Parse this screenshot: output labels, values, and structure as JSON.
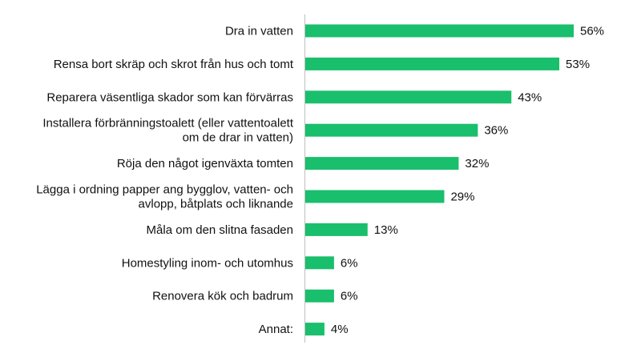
{
  "chart_data": {
    "type": "bar",
    "orientation": "horizontal",
    "categories": [
      "Dra in vatten",
      "Rensa bort skräp och skrot från hus och tomt",
      "Reparera väsentliga skador som kan förvärras",
      "Installera förbränningstoalett (eller vattentoalett om de drar in vatten)",
      "Röja den något igenväxta tomten",
      "Lägga i ordning papper ang bygglov, vatten- och avlopp, båtplats och liknande",
      "Måla om den slitna fasaden",
      "Homestyling inom- och utomhus",
      "Renovera kök och badrum",
      "Annat:"
    ],
    "category_lines": [
      [
        "Dra in vatten"
      ],
      [
        "Rensa bort skräp och skrot från hus och tomt"
      ],
      [
        "Reparera väsentliga skador som kan förvärras"
      ],
      [
        "Installera förbränningstoalett (eller vattentoalett",
        "om de drar in vatten)"
      ],
      [
        "Röja den något igenväxta tomten"
      ],
      [
        "Lägga i ordning papper ang bygglov, vatten- och",
        "avlopp, båtplats och liknande"
      ],
      [
        "Måla om den slitna fasaden"
      ],
      [
        "Homestyling inom- och utomhus"
      ],
      [
        "Renovera kök och badrum"
      ],
      [
        "Annat:"
      ]
    ],
    "values": [
      56,
      53,
      43,
      36,
      32,
      29,
      13,
      6,
      6,
      4
    ],
    "value_labels": [
      "56%",
      "53%",
      "43%",
      "36%",
      "32%",
      "29%",
      "13%",
      "6%",
      "6%",
      "4%"
    ],
    "xlim": [
      0,
      60
    ],
    "unit": "%",
    "bar_color": "#19bf6c",
    "grid": false,
    "legend": "none"
  }
}
